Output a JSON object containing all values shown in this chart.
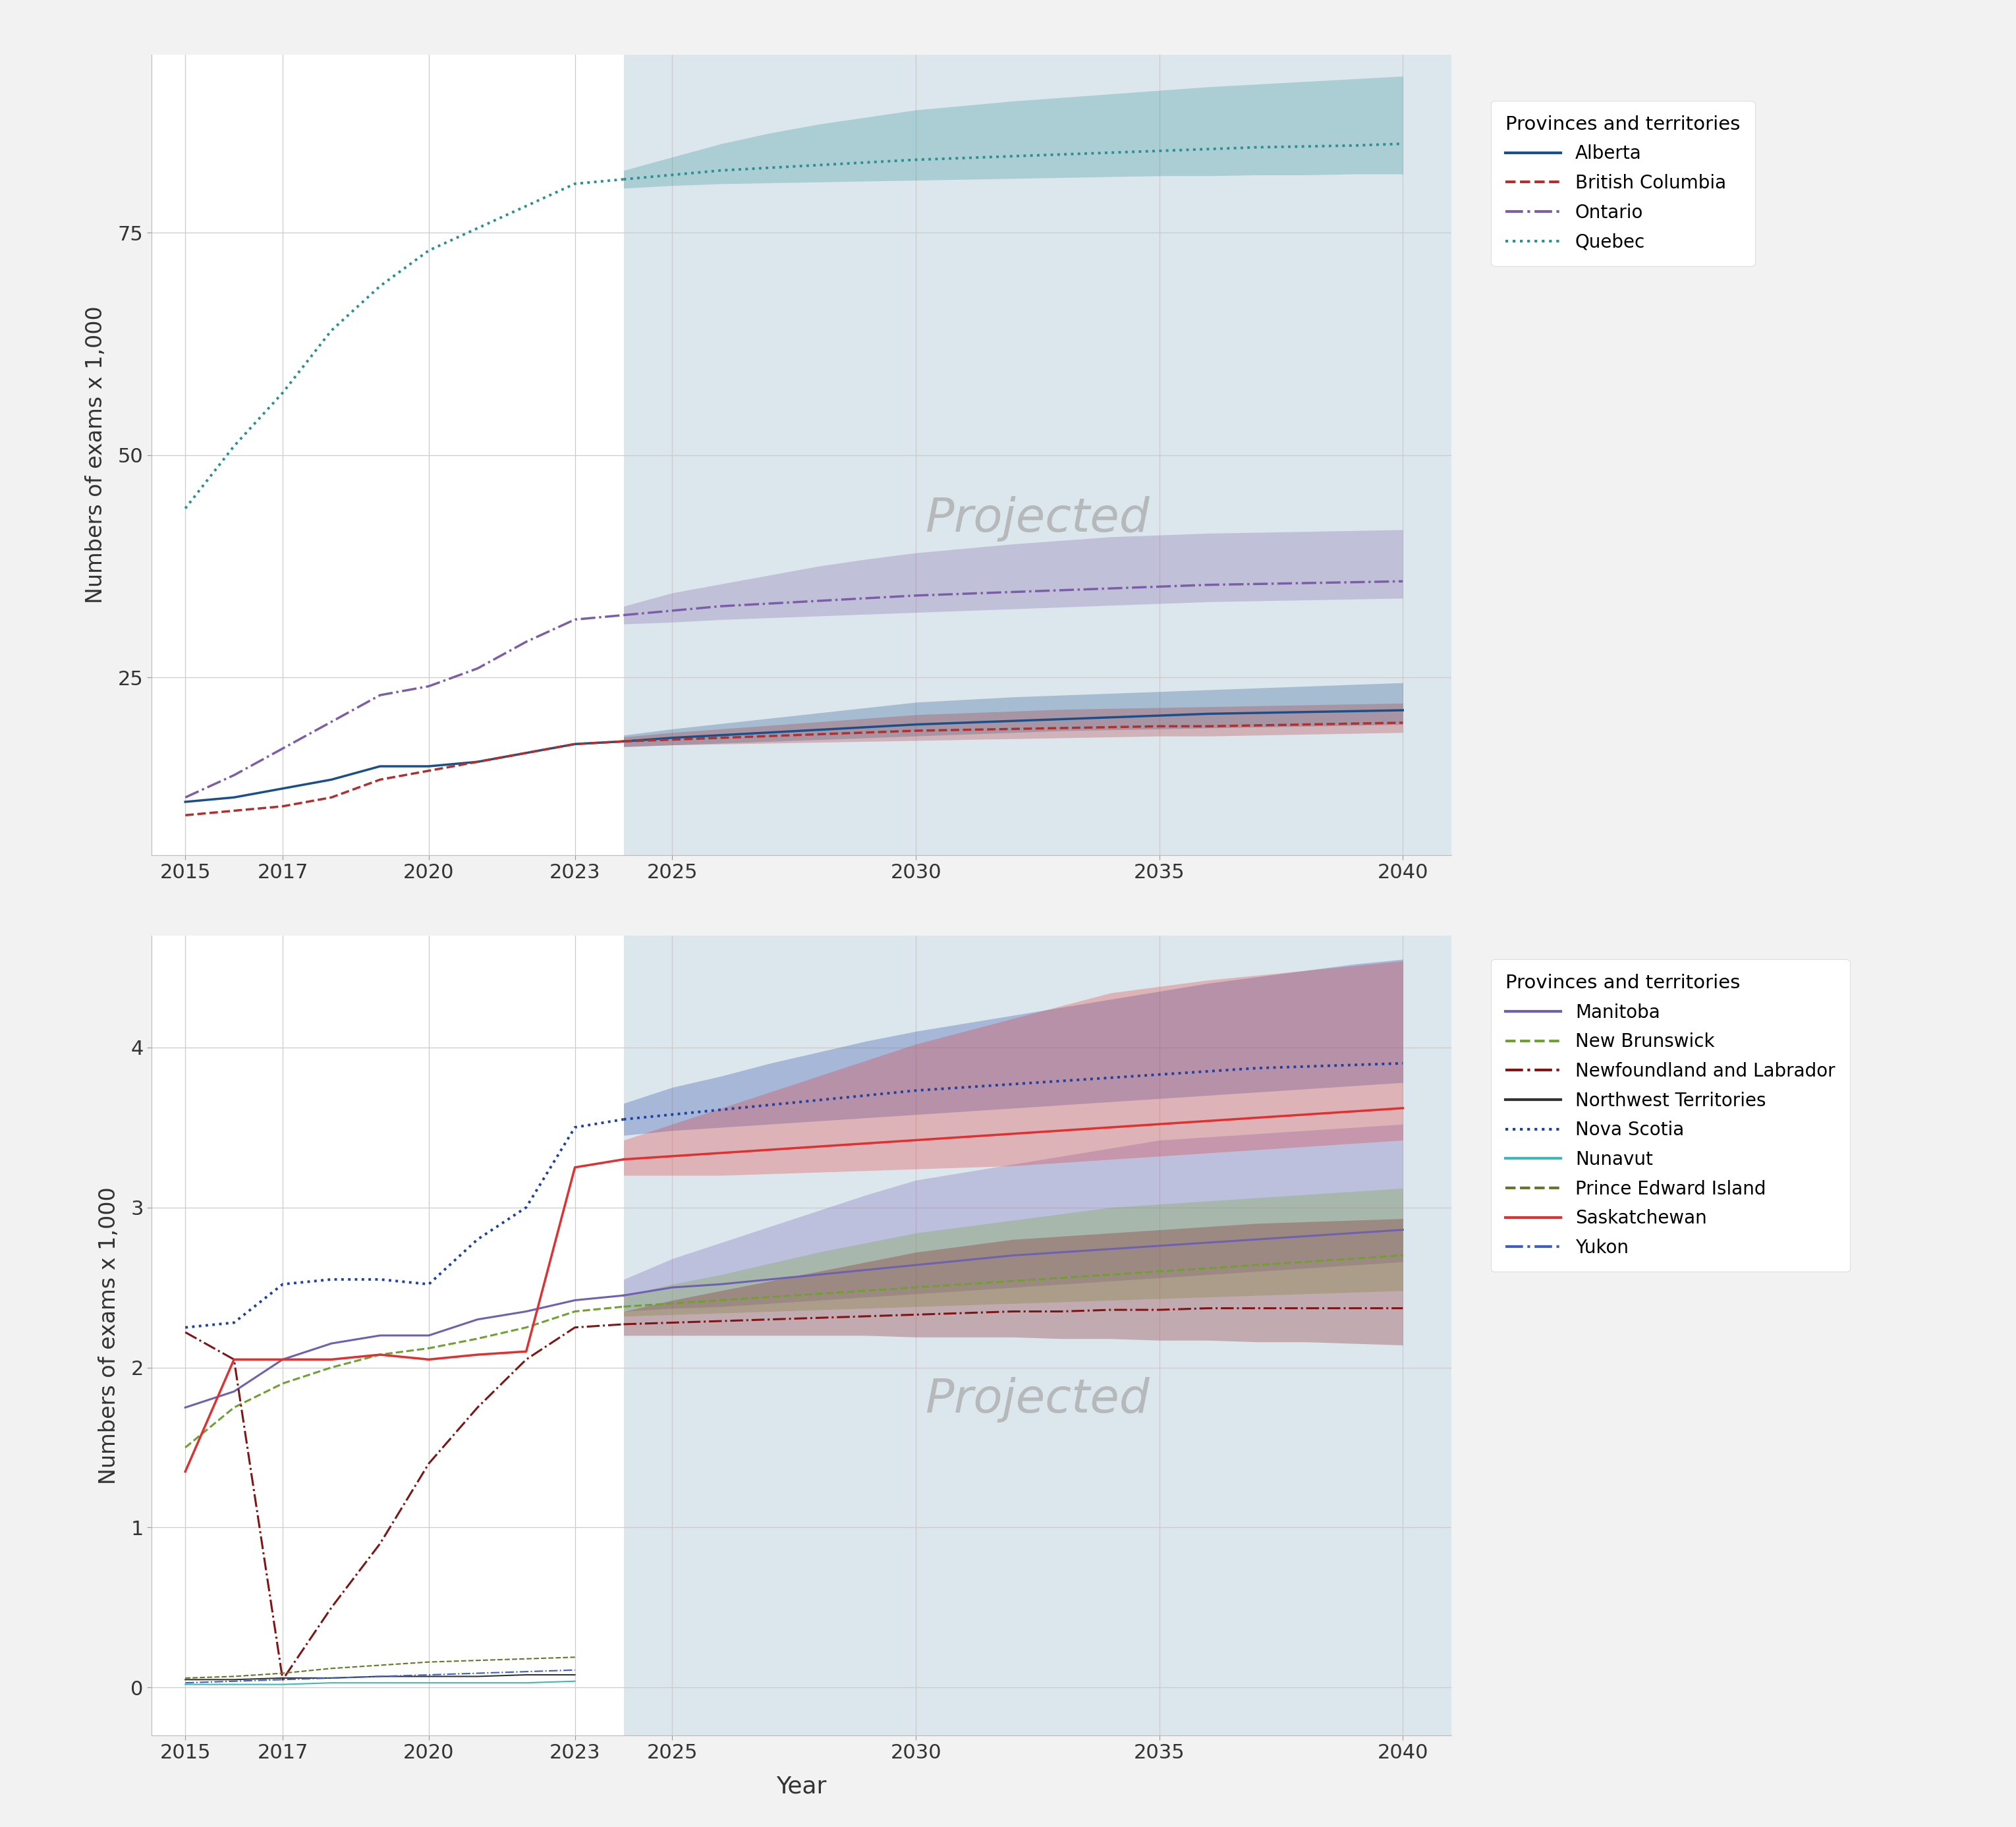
{
  "background_color": "#f2f2f2",
  "plot_bg_color": "#ffffff",
  "projected_bg_color": "#dce6ed",
  "projected_start": 2024,
  "top_panel": {
    "ylim": [
      5,
      95
    ],
    "yticks": [
      25,
      50,
      75
    ],
    "ylabel": "Numbers of exams x 1,000",
    "projected_label": "Projected",
    "series": {
      "Alberta": {
        "color": "#1b4f8a",
        "linestyle": "solid",
        "linewidth": 2.5,
        "historical_x": [
          2015,
          2016,
          2017,
          2018,
          2019,
          2020,
          2021,
          2022,
          2023
        ],
        "historical_y": [
          11.0,
          11.5,
          12.5,
          13.5,
          15.0,
          15.0,
          15.5,
          16.5,
          17.5
        ],
        "proj_x": [
          2024,
          2025,
          2026,
          2027,
          2028,
          2029,
          2030,
          2031,
          2032,
          2033,
          2034,
          2035,
          2036,
          2037,
          2038,
          2039,
          2040
        ],
        "proj_med": [
          17.8,
          18.2,
          18.5,
          18.8,
          19.1,
          19.4,
          19.7,
          19.9,
          20.1,
          20.3,
          20.5,
          20.7,
          20.9,
          21.0,
          21.1,
          21.2,
          21.3
        ],
        "proj_high": [
          18.5,
          19.2,
          19.8,
          20.4,
          21.0,
          21.6,
          22.2,
          22.5,
          22.8,
          23.0,
          23.2,
          23.4,
          23.6,
          23.8,
          24.0,
          24.2,
          24.4
        ],
        "proj_low": [
          17.2,
          17.4,
          17.6,
          17.8,
          18.0,
          18.2,
          18.4,
          18.6,
          18.8,
          19.0,
          19.1,
          19.2,
          19.3,
          19.4,
          19.5,
          19.6,
          19.7
        ]
      },
      "British Columbia": {
        "color": "#b03030",
        "linestyle": "dashed",
        "linewidth": 2.5,
        "historical_x": [
          2015,
          2016,
          2017,
          2018,
          2019,
          2020,
          2021,
          2022,
          2023
        ],
        "historical_y": [
          9.5,
          10.0,
          10.5,
          11.5,
          13.5,
          14.5,
          15.5,
          16.5,
          17.5
        ],
        "proj_x": [
          2024,
          2025,
          2026,
          2027,
          2028,
          2029,
          2030,
          2031,
          2032,
          2033,
          2034,
          2035,
          2036,
          2037,
          2038,
          2039,
          2040
        ],
        "proj_med": [
          17.8,
          18.0,
          18.2,
          18.4,
          18.6,
          18.8,
          19.0,
          19.1,
          19.2,
          19.3,
          19.4,
          19.5,
          19.5,
          19.6,
          19.7,
          19.8,
          19.9
        ],
        "proj_high": [
          18.3,
          18.8,
          19.2,
          19.6,
          20.0,
          20.4,
          20.8,
          21.0,
          21.2,
          21.4,
          21.5,
          21.6,
          21.7,
          21.8,
          21.9,
          22.0,
          22.1
        ],
        "proj_low": [
          17.2,
          17.4,
          17.5,
          17.6,
          17.7,
          17.8,
          17.9,
          18.0,
          18.1,
          18.2,
          18.3,
          18.4,
          18.4,
          18.5,
          18.6,
          18.7,
          18.8
        ]
      },
      "Ontario": {
        "color": "#7b5ea7",
        "linestyle": "dashdot",
        "linewidth": 2.5,
        "historical_x": [
          2015,
          2016,
          2017,
          2018,
          2019,
          2020,
          2021,
          2022,
          2023
        ],
        "historical_y": [
          11.5,
          14.0,
          17.0,
          20.0,
          23.0,
          24.0,
          26.0,
          29.0,
          31.5
        ],
        "proj_x": [
          2024,
          2025,
          2026,
          2027,
          2028,
          2029,
          2030,
          2031,
          2032,
          2033,
          2034,
          2035,
          2036,
          2037,
          2038,
          2039,
          2040
        ],
        "proj_med": [
          32.0,
          32.5,
          33.0,
          33.3,
          33.6,
          33.9,
          34.2,
          34.4,
          34.6,
          34.8,
          35.0,
          35.2,
          35.4,
          35.5,
          35.6,
          35.7,
          35.8
        ],
        "proj_high": [
          33.0,
          34.5,
          35.5,
          36.5,
          37.5,
          38.3,
          39.0,
          39.5,
          40.0,
          40.4,
          40.8,
          41.0,
          41.2,
          41.3,
          41.4,
          41.5,
          41.6
        ],
        "proj_low": [
          31.0,
          31.2,
          31.5,
          31.7,
          31.9,
          32.1,
          32.3,
          32.5,
          32.7,
          32.9,
          33.1,
          33.3,
          33.5,
          33.6,
          33.7,
          33.8,
          33.9
        ]
      },
      "Quebec": {
        "color": "#2a9090",
        "linestyle": "dotted",
        "linewidth": 2.8,
        "historical_x": [
          2015,
          2016,
          2017,
          2018,
          2019,
          2020,
          2021,
          2022,
          2023
        ],
        "historical_y": [
          44.0,
          51.0,
          57.0,
          64.0,
          69.0,
          73.0,
          75.5,
          78.0,
          80.5
        ],
        "proj_x": [
          2024,
          2025,
          2026,
          2027,
          2028,
          2029,
          2030,
          2031,
          2032,
          2033,
          2034,
          2035,
          2036,
          2037,
          2038,
          2039,
          2040
        ],
        "proj_med": [
          81.0,
          81.5,
          82.0,
          82.3,
          82.6,
          82.9,
          83.2,
          83.4,
          83.6,
          83.8,
          84.0,
          84.2,
          84.4,
          84.6,
          84.7,
          84.8,
          85.0
        ],
        "proj_high": [
          82.0,
          83.5,
          85.0,
          86.2,
          87.2,
          88.0,
          88.8,
          89.3,
          89.8,
          90.2,
          90.6,
          91.0,
          91.4,
          91.7,
          92.0,
          92.3,
          92.6
        ],
        "proj_low": [
          80.0,
          80.3,
          80.5,
          80.6,
          80.7,
          80.8,
          80.9,
          81.0,
          81.1,
          81.2,
          81.3,
          81.4,
          81.4,
          81.5,
          81.5,
          81.6,
          81.6
        ]
      }
    },
    "legend": {
      "title": "Provinces and territories",
      "entries": [
        "Alberta",
        "British Columbia",
        "Ontario",
        "Quebec"
      ]
    }
  },
  "bottom_panel": {
    "ylim": [
      -0.3,
      4.7
    ],
    "yticks": [
      0,
      1,
      2,
      3,
      4
    ],
    "ylabel": "Numbers of exams x 1,000",
    "xlabel": "Year",
    "projected_label": "Projected",
    "series": {
      "Manitoba": {
        "color": "#7060b0",
        "linestyle": "solid",
        "linewidth": 2.2,
        "historical_x": [
          2015,
          2016,
          2017,
          2018,
          2019,
          2020,
          2021,
          2022,
          2023
        ],
        "historical_y": [
          1.75,
          1.85,
          2.05,
          2.15,
          2.2,
          2.2,
          2.3,
          2.35,
          2.42
        ],
        "proj_x": [
          2024,
          2025,
          2026,
          2027,
          2028,
          2029,
          2030,
          2031,
          2032,
          2033,
          2034,
          2035,
          2036,
          2037,
          2038,
          2039,
          2040
        ],
        "proj_med": [
          2.45,
          2.5,
          2.52,
          2.55,
          2.58,
          2.61,
          2.64,
          2.67,
          2.7,
          2.72,
          2.74,
          2.76,
          2.78,
          2.8,
          2.82,
          2.84,
          2.86
        ],
        "proj_high": [
          2.55,
          2.68,
          2.78,
          2.88,
          2.98,
          3.08,
          3.17,
          3.22,
          3.27,
          3.32,
          3.37,
          3.42,
          3.44,
          3.46,
          3.48,
          3.5,
          3.52
        ],
        "proj_low": [
          2.35,
          2.37,
          2.38,
          2.4,
          2.42,
          2.44,
          2.46,
          2.48,
          2.5,
          2.52,
          2.54,
          2.56,
          2.58,
          2.6,
          2.62,
          2.64,
          2.66
        ]
      },
      "New Brunswick": {
        "color": "#70a030",
        "linestyle": "dashed",
        "linewidth": 2.2,
        "historical_x": [
          2015,
          2016,
          2017,
          2018,
          2019,
          2020,
          2021,
          2022,
          2023
        ],
        "historical_y": [
          1.5,
          1.75,
          1.9,
          2.0,
          2.08,
          2.12,
          2.18,
          2.25,
          2.35
        ],
        "proj_x": [
          2024,
          2025,
          2026,
          2027,
          2028,
          2029,
          2030,
          2031,
          2032,
          2033,
          2034,
          2035,
          2036,
          2037,
          2038,
          2039,
          2040
        ],
        "proj_med": [
          2.38,
          2.4,
          2.42,
          2.44,
          2.46,
          2.48,
          2.5,
          2.52,
          2.54,
          2.56,
          2.58,
          2.6,
          2.62,
          2.64,
          2.66,
          2.68,
          2.7
        ],
        "proj_high": [
          2.45,
          2.52,
          2.58,
          2.65,
          2.72,
          2.78,
          2.84,
          2.88,
          2.92,
          2.96,
          3.0,
          3.02,
          3.04,
          3.06,
          3.08,
          3.1,
          3.12
        ],
        "proj_low": [
          2.32,
          2.33,
          2.34,
          2.35,
          2.36,
          2.37,
          2.38,
          2.39,
          2.4,
          2.41,
          2.42,
          2.43,
          2.44,
          2.45,
          2.46,
          2.47,
          2.48
        ]
      },
      "Newfoundland and Labrador": {
        "color": "#801515",
        "linestyle": "dashdot",
        "linewidth": 2.2,
        "historical_x": [
          2015,
          2016,
          2017,
          2018,
          2019,
          2020,
          2021,
          2022,
          2023
        ],
        "historical_y": [
          2.22,
          2.05,
          0.05,
          0.5,
          0.9,
          1.4,
          1.75,
          2.05,
          2.25
        ],
        "proj_x": [
          2024,
          2025,
          2026,
          2027,
          2028,
          2029,
          2030,
          2031,
          2032,
          2033,
          2034,
          2035,
          2036,
          2037,
          2038,
          2039,
          2040
        ],
        "proj_med": [
          2.27,
          2.28,
          2.29,
          2.3,
          2.31,
          2.32,
          2.33,
          2.34,
          2.35,
          2.35,
          2.36,
          2.36,
          2.37,
          2.37,
          2.37,
          2.37,
          2.37
        ],
        "proj_high": [
          2.35,
          2.42,
          2.48,
          2.54,
          2.6,
          2.66,
          2.72,
          2.76,
          2.8,
          2.82,
          2.84,
          2.86,
          2.88,
          2.9,
          2.91,
          2.92,
          2.93
        ],
        "proj_low": [
          2.2,
          2.2,
          2.2,
          2.2,
          2.2,
          2.2,
          2.19,
          2.19,
          2.19,
          2.18,
          2.18,
          2.17,
          2.17,
          2.16,
          2.16,
          2.15,
          2.14
        ]
      },
      "Northwest Territories": {
        "color": "#333333",
        "linestyle": "solid",
        "linewidth": 1.5,
        "historical_x": [
          2015,
          2016,
          2017,
          2018,
          2019,
          2020,
          2021,
          2022,
          2023
        ],
        "historical_y": [
          0.05,
          0.05,
          0.06,
          0.06,
          0.07,
          0.07,
          0.07,
          0.08,
          0.08
        ],
        "proj_x": [],
        "proj_med": [],
        "proj_high": [],
        "proj_low": []
      },
      "Nova Scotia": {
        "color": "#2040a0",
        "linestyle": "dotted",
        "linewidth": 2.8,
        "historical_x": [
          2015,
          2016,
          2017,
          2018,
          2019,
          2020,
          2021,
          2022,
          2023
        ],
        "historical_y": [
          2.25,
          2.28,
          2.52,
          2.55,
          2.55,
          2.52,
          2.8,
          3.0,
          3.5
        ],
        "proj_x": [
          2024,
          2025,
          2026,
          2027,
          2028,
          2029,
          2030,
          2031,
          2032,
          2033,
          2034,
          2035,
          2036,
          2037,
          2038,
          2039,
          2040
        ],
        "proj_med": [
          3.55,
          3.58,
          3.61,
          3.64,
          3.67,
          3.7,
          3.73,
          3.75,
          3.77,
          3.79,
          3.81,
          3.83,
          3.85,
          3.87,
          3.88,
          3.89,
          3.9
        ],
        "proj_high": [
          3.65,
          3.75,
          3.82,
          3.9,
          3.97,
          4.04,
          4.1,
          4.15,
          4.2,
          4.25,
          4.3,
          4.35,
          4.4,
          4.44,
          4.48,
          4.52,
          4.55
        ],
        "proj_low": [
          3.45,
          3.48,
          3.5,
          3.52,
          3.54,
          3.56,
          3.58,
          3.6,
          3.62,
          3.64,
          3.66,
          3.68,
          3.7,
          3.72,
          3.74,
          3.76,
          3.78
        ]
      },
      "Nunavut": {
        "color": "#40b8b8",
        "linestyle": "solid",
        "linewidth": 1.5,
        "historical_x": [
          2015,
          2016,
          2017,
          2018,
          2019,
          2020,
          2021,
          2022,
          2023
        ],
        "historical_y": [
          0.02,
          0.02,
          0.02,
          0.03,
          0.03,
          0.03,
          0.03,
          0.03,
          0.04
        ],
        "proj_x": [],
        "proj_med": [],
        "proj_high": [],
        "proj_low": []
      },
      "Prince Edward Island": {
        "color": "#607828",
        "linestyle": "dashed",
        "linewidth": 1.5,
        "historical_x": [
          2015,
          2016,
          2017,
          2018,
          2019,
          2020,
          2021,
          2022,
          2023
        ],
        "historical_y": [
          0.06,
          0.07,
          0.09,
          0.12,
          0.14,
          0.16,
          0.17,
          0.18,
          0.19
        ],
        "proj_x": [],
        "proj_med": [],
        "proj_high": [],
        "proj_low": []
      },
      "Saskatchewan": {
        "color": "#e03030",
        "linestyle": "solid",
        "linewidth": 2.5,
        "historical_x": [
          2015,
          2016,
          2017,
          2018,
          2019,
          2020,
          2021,
          2022,
          2023
        ],
        "historical_y": [
          1.35,
          2.05,
          2.05,
          2.05,
          2.08,
          2.05,
          2.08,
          2.1,
          3.25
        ],
        "proj_x": [
          2024,
          2025,
          2026,
          2027,
          2028,
          2029,
          2030,
          2031,
          2032,
          2033,
          2034,
          2035,
          2036,
          2037,
          2038,
          2039,
          2040
        ],
        "proj_med": [
          3.3,
          3.32,
          3.34,
          3.36,
          3.38,
          3.4,
          3.42,
          3.44,
          3.46,
          3.48,
          3.5,
          3.52,
          3.54,
          3.56,
          3.58,
          3.6,
          3.62
        ],
        "proj_high": [
          3.42,
          3.52,
          3.62,
          3.72,
          3.82,
          3.92,
          4.02,
          4.1,
          4.18,
          4.26,
          4.34,
          4.38,
          4.42,
          4.45,
          4.48,
          4.51,
          4.54
        ],
        "proj_low": [
          3.2,
          3.2,
          3.2,
          3.21,
          3.22,
          3.23,
          3.24,
          3.25,
          3.26,
          3.28,
          3.3,
          3.32,
          3.34,
          3.36,
          3.38,
          3.4,
          3.42
        ]
      },
      "Yukon": {
        "color": "#4060c0",
        "linestyle": "dashdot",
        "linewidth": 1.5,
        "historical_x": [
          2015,
          2016,
          2017,
          2018,
          2019,
          2020,
          2021,
          2022,
          2023
        ],
        "historical_y": [
          0.03,
          0.04,
          0.05,
          0.06,
          0.07,
          0.08,
          0.09,
          0.1,
          0.11
        ],
        "proj_x": [],
        "proj_med": [],
        "proj_high": [],
        "proj_low": []
      }
    },
    "legend": {
      "title": "Provinces and territories",
      "entries": [
        "Manitoba",
        "New Brunswick",
        "Newfoundland and Labrador",
        "Northwest Territories",
        "Nova Scotia",
        "Nunavut",
        "Prince Edward Island",
        "Saskatchewan",
        "Yukon"
      ]
    }
  },
  "xticks": [
    2015,
    2017,
    2020,
    2023,
    2025,
    2030,
    2035,
    2040
  ],
  "proj_fill_alpha": 0.28,
  "font_size_tick": 22,
  "font_size_label": 24,
  "font_size_legend": 20,
  "font_size_legend_title": 21,
  "font_size_watermark": 52
}
